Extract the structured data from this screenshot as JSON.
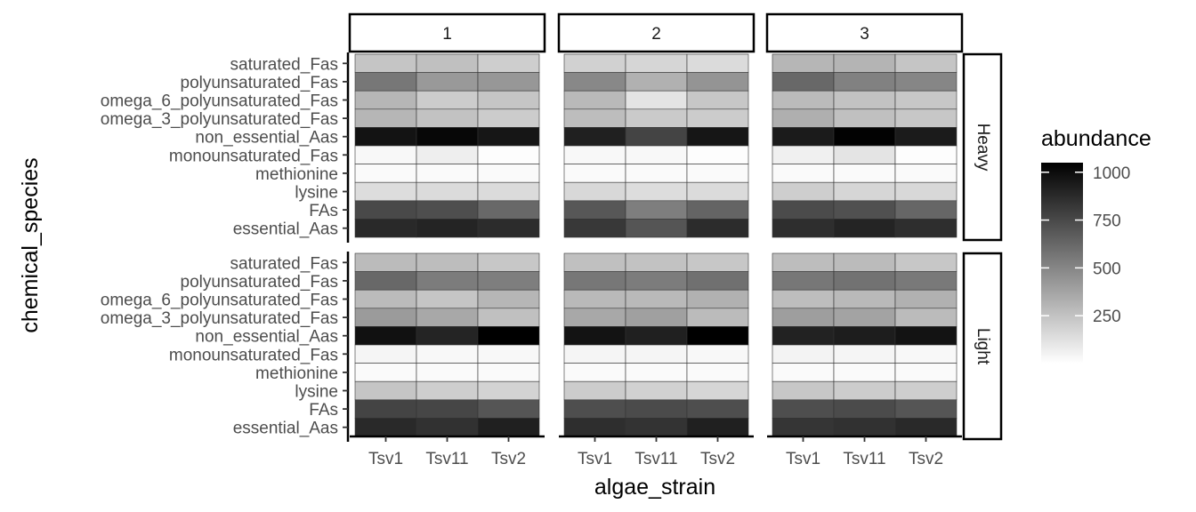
{
  "chart_data": {
    "type": "heatmap",
    "xlabel": "algae_strain",
    "ylabel": "chemical_species",
    "x_categories": [
      "Tsv1",
      "Tsv11",
      "Tsv2"
    ],
    "y_categories": [
      "saturated_Fas",
      "polyunsaturated_Fas",
      "omega_6_polyunsaturated_Fas",
      "omega_3_polyunsaturated_Fas",
      "non_essential_Aas",
      "monounsaturated_Fas",
      "methionine",
      "lysine",
      "FAs",
      "essential_Aas"
    ],
    "facet_columns": [
      "1",
      "2",
      "3"
    ],
    "facet_rows": [
      "Heavy",
      "Light"
    ],
    "legend": {
      "title": "abundance",
      "ticks": [
        250,
        500,
        750,
        1000
      ],
      "range": [
        0,
        1050
      ],
      "low_color": "#ffffff",
      "high_color": "#000000"
    },
    "panels": [
      {
        "column": "1",
        "row": "Heavy",
        "values": [
          [
            240,
            260,
            200
          ],
          [
            560,
            420,
            430
          ],
          [
            300,
            210,
            240
          ],
          [
            300,
            250,
            210
          ],
          [
            970,
            1020,
            960
          ],
          [
            30,
            70,
            10
          ],
          [
            20,
            20,
            20
          ],
          [
            140,
            150,
            150
          ],
          [
            750,
            730,
            620
          ],
          [
            880,
            900,
            870
          ]
        ]
      },
      {
        "column": "2",
        "row": "Heavy",
        "values": [
          [
            190,
            170,
            150
          ],
          [
            490,
            320,
            440
          ],
          [
            290,
            110,
            230
          ],
          [
            270,
            220,
            210
          ],
          [
            920,
            770,
            960
          ],
          [
            30,
            30,
            10
          ],
          [
            20,
            20,
            20
          ],
          [
            160,
            140,
            150
          ],
          [
            690,
            530,
            640
          ],
          [
            820,
            700,
            870
          ]
        ]
      },
      {
        "column": "3",
        "row": "Heavy",
        "values": [
          [
            300,
            310,
            240
          ],
          [
            620,
            520,
            500
          ],
          [
            280,
            250,
            230
          ],
          [
            330,
            260,
            230
          ],
          [
            940,
            1040,
            940
          ],
          [
            60,
            110,
            10
          ],
          [
            20,
            20,
            20
          ],
          [
            200,
            170,
            160
          ],
          [
            740,
            720,
            630
          ],
          [
            860,
            900,
            860
          ]
        ]
      },
      {
        "column": "1",
        "row": "Light",
        "values": [
          [
            280,
            270,
            230
          ],
          [
            620,
            540,
            530
          ],
          [
            280,
            240,
            300
          ],
          [
            410,
            360,
            260
          ],
          [
            980,
            900,
            1050
          ],
          [
            40,
            30,
            30
          ],
          [
            20,
            20,
            20
          ],
          [
            240,
            200,
            180
          ],
          [
            770,
            760,
            700
          ],
          [
            880,
            850,
            920
          ]
        ]
      },
      {
        "column": "2",
        "row": "Light",
        "values": [
          [
            260,
            250,
            230
          ],
          [
            560,
            540,
            590
          ],
          [
            290,
            290,
            320
          ],
          [
            360,
            390,
            280
          ],
          [
            970,
            920,
            1050
          ],
          [
            40,
            40,
            30
          ],
          [
            20,
            20,
            20
          ],
          [
            210,
            190,
            170
          ],
          [
            730,
            740,
            730
          ],
          [
            860,
            840,
            920
          ]
        ]
      },
      {
        "column": "3",
        "row": "Light",
        "values": [
          [
            270,
            280,
            230
          ],
          [
            560,
            580,
            550
          ],
          [
            270,
            290,
            320
          ],
          [
            400,
            380,
            280
          ],
          [
            910,
            930,
            970
          ],
          [
            50,
            40,
            30
          ],
          [
            20,
            20,
            20
          ],
          [
            230,
            210,
            200
          ],
          [
            730,
            740,
            700
          ],
          [
            830,
            850,
            880
          ]
        ]
      }
    ]
  }
}
